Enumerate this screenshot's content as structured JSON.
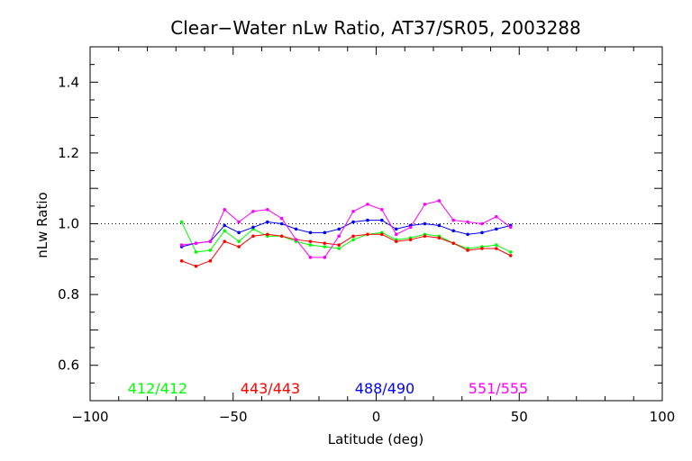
{
  "chart_data": {
    "type": "line",
    "title": "Clear−Water nLw Ratio, AT37/SR05, 2003288",
    "xlabel": "Latitude (deg)",
    "ylabel": "nLw Ratio",
    "xlim": [
      -100,
      100
    ],
    "ylim": [
      0.5,
      1.5
    ],
    "x_ticks": [
      -100,
      -50,
      0,
      50,
      100
    ],
    "x_tick_labels": [
      "−100",
      "−50",
      "0",
      "50",
      "100"
    ],
    "y_ticks": [
      0.6,
      0.8,
      1.0,
      1.2,
      1.4
    ],
    "y_tick_labels": [
      "0.6",
      "0.8",
      "1.0",
      "1.2",
      "1.4"
    ],
    "reference_line": {
      "y": 1.0,
      "style": "dotted"
    },
    "grid": false,
    "legend_position": "bottom",
    "x": [
      -68,
      -63,
      -58,
      -53,
      -48,
      -43,
      -38,
      -33,
      -28,
      -23,
      -18,
      -13,
      -8,
      -3,
      2,
      7,
      12,
      17,
      22,
      27,
      32,
      37,
      42,
      47
    ],
    "series": [
      {
        "name": "412/412",
        "color": "#00ff00",
        "values": [
          1.005,
          0.92,
          0.925,
          0.98,
          0.95,
          0.985,
          0.965,
          0.965,
          0.95,
          0.94,
          0.935,
          0.93,
          0.955,
          0.97,
          0.975,
          0.955,
          0.96,
          0.97,
          0.965,
          0.945,
          0.93,
          0.935,
          0.94,
          0.92
        ]
      },
      {
        "name": "443/443",
        "color": "#ff0000",
        "values": [
          0.895,
          0.88,
          0.895,
          0.95,
          0.935,
          0.965,
          0.97,
          0.965,
          0.955,
          0.95,
          0.945,
          0.94,
          0.965,
          0.97,
          0.97,
          0.95,
          0.955,
          0.965,
          0.96,
          0.945,
          0.925,
          0.93,
          0.93,
          0.91
        ]
      },
      {
        "name": "488/490",
        "color": "#0000ff",
        "values": [
          0.935,
          0.945,
          0.95,
          0.995,
          0.975,
          0.99,
          1.005,
          1.0,
          0.985,
          0.975,
          0.975,
          0.985,
          1.005,
          1.01,
          1.01,
          0.985,
          0.995,
          1.0,
          0.995,
          0.98,
          0.97,
          0.975,
          0.985,
          0.995
        ]
      },
      {
        "name": "551/555",
        "color": "#ff00ff",
        "values": [
          0.94,
          0.945,
          0.95,
          1.04,
          1.005,
          1.035,
          1.04,
          1.015,
          0.955,
          0.905,
          0.905,
          0.965,
          1.035,
          1.055,
          1.04,
          0.97,
          0.99,
          1.055,
          1.065,
          1.01,
          1.005,
          1.0,
          1.02,
          0.99
        ]
      }
    ]
  }
}
